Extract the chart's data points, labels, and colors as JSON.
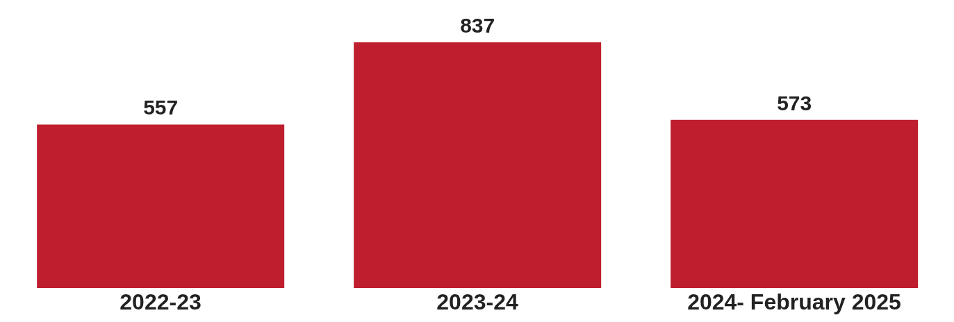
{
  "chart_data": {
    "type": "bar",
    "categories": [
      "2022-23",
      "2023-24",
      "2024- February 2025"
    ],
    "values": [
      557,
      837,
      573
    ],
    "color": "#be1e2d",
    "data_labels": true
  }
}
